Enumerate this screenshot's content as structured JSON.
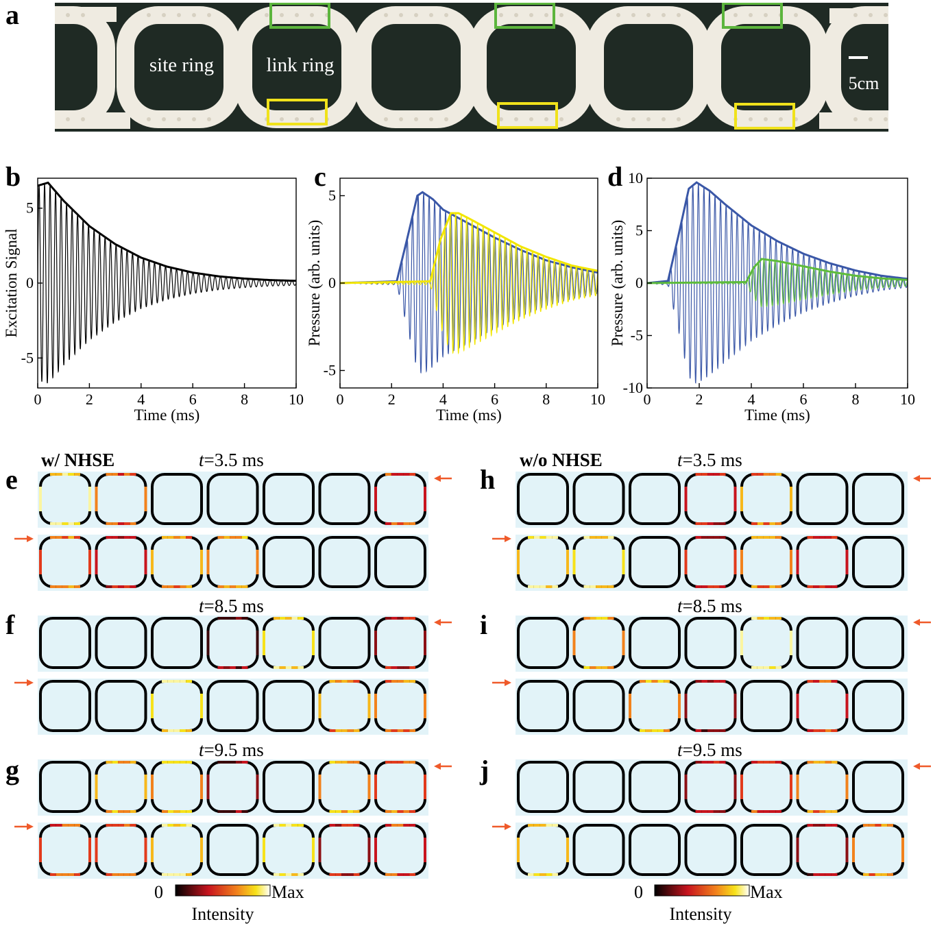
{
  "panel_labels": {
    "a": "a",
    "b": "b",
    "c": "c",
    "d": "d",
    "e": "e",
    "f": "f",
    "g": "g",
    "h": "h",
    "i": "i",
    "j": "j"
  },
  "photo": {
    "site_ring_label": "site ring",
    "link_ring_label": "link ring",
    "scale_bar_label": "5cm",
    "colors": {
      "background": "#1f2a24",
      "ring": "#efebe1",
      "green_box": "#5cb53d",
      "yellow_box": "#f0e21b"
    }
  },
  "chart_data": [
    {
      "type": "line",
      "panel": "b",
      "xlabel": "Time (ms)",
      "ylabel": "Excitation Signal",
      "xlim": [
        0,
        10
      ],
      "ylim": [
        -7,
        7
      ],
      "xticks": [
        "0",
        "2",
        "4",
        "6",
        "8",
        "10"
      ],
      "yticks": [
        "-5",
        "0",
        "5"
      ],
      "series": [
        {
          "color": "#000000",
          "envelope_t_ms": [
            0,
            0.4,
            1,
            2,
            3,
            4,
            5,
            6,
            7,
            8,
            9,
            10
          ],
          "envelope_amplitude": [
            6.5,
            6.7,
            5.5,
            3.8,
            2.6,
            1.7,
            1.1,
            0.7,
            0.45,
            0.3,
            0.2,
            0.15
          ]
        }
      ]
    },
    {
      "type": "line",
      "panel": "c",
      "xlabel": "Time (ms)",
      "ylabel": "Pressure (arb. units)",
      "xlim": [
        0,
        10
      ],
      "ylim": [
        -6,
        6
      ],
      "xticks": [
        "0",
        "2",
        "4",
        "6",
        "8",
        "10"
      ],
      "yticks": [
        "-5",
        "0",
        "5"
      ],
      "series": [
        {
          "color": "#3a57a7",
          "envelope_t_ms": [
            0,
            2.2,
            2.6,
            3.0,
            3.2,
            3.6,
            4.0,
            5.0,
            6.0,
            7.0,
            8.0,
            9.0,
            10.0
          ],
          "envelope_amplitude": [
            0,
            0.1,
            2.5,
            5.0,
            5.2,
            4.8,
            4.2,
            3.4,
            2.6,
            1.9,
            1.3,
            0.9,
            0.6
          ]
        },
        {
          "color": "#f2e600",
          "envelope_t_ms": [
            0,
            3.5,
            3.9,
            4.3,
            4.6,
            5.0,
            6.0,
            7.0,
            8.0,
            9.0,
            10.0
          ],
          "envelope_amplitude": [
            0,
            0.1,
            2.5,
            4.0,
            4.0,
            3.7,
            2.9,
            2.1,
            1.5,
            1.0,
            0.7
          ]
        }
      ]
    },
    {
      "type": "line",
      "panel": "d",
      "xlabel": "Time (ms)",
      "ylabel": "Pressure (arb. units)",
      "xlim": [
        0,
        10
      ],
      "ylim": [
        -10,
        10
      ],
      "xticks": [
        "0",
        "2",
        "4",
        "6",
        "8",
        "10"
      ],
      "yticks": [
        "-10",
        "-5",
        "0",
        "5",
        "10"
      ],
      "series": [
        {
          "color": "#3a57a7",
          "envelope_t_ms": [
            0,
            0.8,
            1.2,
            1.6,
            1.9,
            2.4,
            3.0,
            4.0,
            5.0,
            6.0,
            7.0,
            8.0,
            9.0,
            10.0
          ],
          "envelope_amplitude": [
            0,
            0.2,
            4.5,
            9.0,
            9.6,
            8.8,
            7.5,
            5.5,
            4.0,
            2.8,
            1.9,
            1.2,
            0.7,
            0.4
          ]
        },
        {
          "color": "#5dbb3c",
          "envelope_t_ms": [
            0,
            3.8,
            4.1,
            4.4,
            5.0,
            6.0,
            7.0,
            8.0,
            9.0,
            10.0
          ],
          "envelope_amplitude": [
            0,
            0.1,
            1.5,
            2.3,
            2.1,
            1.6,
            1.1,
            0.7,
            0.45,
            0.3
          ]
        }
      ]
    }
  ],
  "field_panels": {
    "left_header": "w/ NHSE",
    "right_header": "w/o NHSE",
    "snapshots": [
      {
        "label_e": "e",
        "label_h": "h",
        "time_italic": "t",
        "time_value": "=3.5 ms"
      },
      {
        "label_f": "f",
        "label_i": "i",
        "time_italic": "t",
        "time_value": "=8.5 ms"
      },
      {
        "label_g": "g",
        "label_j": "j",
        "time_italic": "t",
        "time_value": "=9.5 ms"
      }
    ],
    "input_arrow_color": "#ef5a2a",
    "background_color": "#e2f3f8"
  },
  "colorbar": {
    "min_label": "0",
    "max_label": "Max",
    "title": "Intensity"
  }
}
